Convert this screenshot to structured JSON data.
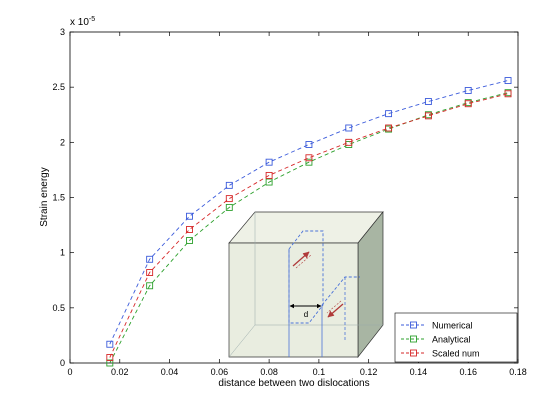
{
  "chart_data": {
    "type": "line",
    "title": "",
    "xlabel": "distance between two dislocations",
    "ylabel": "Strain energy",
    "y_multiplier_base": "x 10",
    "y_multiplier_exp": "-5",
    "xlim": [
      0,
      0.18
    ],
    "ylim": [
      0,
      3
    ],
    "x_ticks": [
      0,
      0.02,
      0.04,
      0.06,
      0.08,
      0.1,
      0.12,
      0.14,
      0.16,
      0.18
    ],
    "x_tick_labels": [
      "0",
      "0.02",
      "0.04",
      "0.06",
      "0.08",
      "0.1",
      "0.12",
      "0.14",
      "0.16",
      "0.18"
    ],
    "y_ticks": [
      0,
      0.5,
      1,
      1.5,
      2,
      2.5,
      3
    ],
    "y_tick_labels": [
      "0",
      "0.5",
      "1",
      "1.5",
      "2",
      "2.5",
      "3"
    ],
    "grid": false,
    "legend_position": "bottom-right",
    "x": [
      0.016,
      0.032,
      0.048,
      0.064,
      0.08,
      0.096,
      0.112,
      0.128,
      0.144,
      0.16,
      0.176
    ],
    "series": [
      {
        "name": "Numerical",
        "color": "#3b5bdb",
        "values": [
          0.17,
          0.94,
          1.33,
          1.61,
          1.82,
          1.98,
          2.13,
          2.26,
          2.37,
          2.47,
          2.56
        ]
      },
      {
        "name": "Analytical",
        "color": "#2ca02c",
        "values": [
          0.0,
          0.7,
          1.11,
          1.41,
          1.64,
          1.82,
          1.98,
          2.12,
          2.25,
          2.36,
          2.45
        ]
      },
      {
        "name": "Scaled num",
        "color": "#d62728",
        "values": [
          0.05,
          0.82,
          1.21,
          1.49,
          1.7,
          1.86,
          2.0,
          2.13,
          2.24,
          2.35,
          2.44
        ]
      }
    ],
    "inset": {
      "description_icon": "cube-with-two-dislocations-icon",
      "distance_label": "d"
    }
  }
}
